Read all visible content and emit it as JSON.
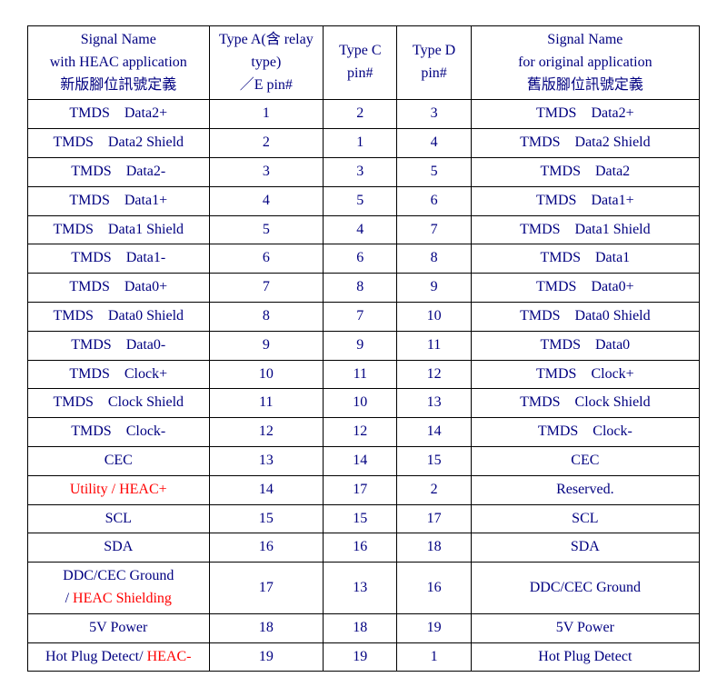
{
  "colors": {
    "text": "#000080",
    "highlight": "#ff0000",
    "border": "#000000",
    "background": "#ffffff"
  },
  "fonts": {
    "family": "Times New Roman / PMingLiU",
    "size_pt": 12
  },
  "layout": {
    "col_widths_pct": [
      27,
      17,
      11,
      11,
      34
    ]
  },
  "header": {
    "col1": {
      "l1": "Signal Name",
      "l2": "with HEAC application",
      "l3": "新版腳位訊號定義"
    },
    "col2": {
      "l1": "Type A(含 relay type)",
      "l2": "／E pin#"
    },
    "col3": {
      "l1": "Type C",
      "l2": "pin#"
    },
    "col4": {
      "l1": "Type D",
      "l2": "pin#"
    },
    "col5": {
      "l1": "Signal Name",
      "l2": "for original application",
      "l3": "舊版腳位訊號定義"
    }
  },
  "rows": [
    {
      "c1": "TMDS　Data2+",
      "c2": "1",
      "c3": "2",
      "c4": "3",
      "c5": "TMDS　Data2+"
    },
    {
      "c1": "TMDS　Data2 Shield",
      "c2": "2",
      "c3": "1",
      "c4": "4",
      "c5": "TMDS　Data2 Shield"
    },
    {
      "c1": "TMDS　Data2-",
      "c2": "3",
      "c3": "3",
      "c4": "5",
      "c5": "TMDS　Data2"
    },
    {
      "c1": "TMDS　Data1+",
      "c2": "4",
      "c3": "5",
      "c4": "6",
      "c5": "TMDS　Data1+"
    },
    {
      "c1": "TMDS　Data1 Shield",
      "c2": "5",
      "c3": "4",
      "c4": "7",
      "c5": "TMDS　Data1 Shield"
    },
    {
      "c1": "TMDS　Data1-",
      "c2": "6",
      "c3": "6",
      "c4": "8",
      "c5": "TMDS　Data1"
    },
    {
      "c1": "TMDS　Data0+",
      "c2": "7",
      "c3": "8",
      "c4": "9",
      "c5": "TMDS　Data0+"
    },
    {
      "c1": "TMDS　Data0 Shield",
      "c2": "8",
      "c3": "7",
      "c4": "10",
      "c5": "TMDS　Data0 Shield"
    },
    {
      "c1": "TMDS　Data0-",
      "c2": "9",
      "c3": "9",
      "c4": "11",
      "c5": "TMDS　Data0"
    },
    {
      "c1": "TMDS　Clock+",
      "c2": "10",
      "c3": "11",
      "c4": "12",
      "c5": "TMDS　Clock+"
    },
    {
      "c1": "TMDS　Clock Shield",
      "c2": "11",
      "c3": "10",
      "c4": "13",
      "c5": "TMDS　Clock Shield"
    },
    {
      "c1": "TMDS　Clock-",
      "c2": "12",
      "c3": "12",
      "c4": "14",
      "c5": "TMDS　Clock-"
    },
    {
      "c1": "CEC",
      "c2": "13",
      "c3": "14",
      "c4": "15",
      "c5": "CEC"
    },
    {
      "c1": "Utility / HEAC+",
      "c1_red": true,
      "c2": "14",
      "c3": "17",
      "c4": "2",
      "c5": "Reserved."
    },
    {
      "c1": "SCL",
      "c2": "15",
      "c3": "15",
      "c4": "17",
      "c5": "SCL"
    },
    {
      "c1": "SDA",
      "c2": "16",
      "c3": "16",
      "c4": "18",
      "c5": "SDA"
    },
    {
      "c1_l1": "DDC/CEC Ground",
      "c1_l2_pre": "/ ",
      "c1_l2_red": "HEAC Shielding",
      "c2": "17",
      "c3": "13",
      "c4": "16",
      "c5": "DDC/CEC Ground"
    },
    {
      "c1": "5V Power",
      "c2": "18",
      "c3": "18",
      "c4": "19",
      "c5": "5V Power"
    },
    {
      "c1_pre": "Hot Plug Detect/ ",
      "c1_red_suf": "HEAC-",
      "c2": "19",
      "c3": "19",
      "c4": "1",
      "c5": "Hot Plug Detect"
    }
  ]
}
